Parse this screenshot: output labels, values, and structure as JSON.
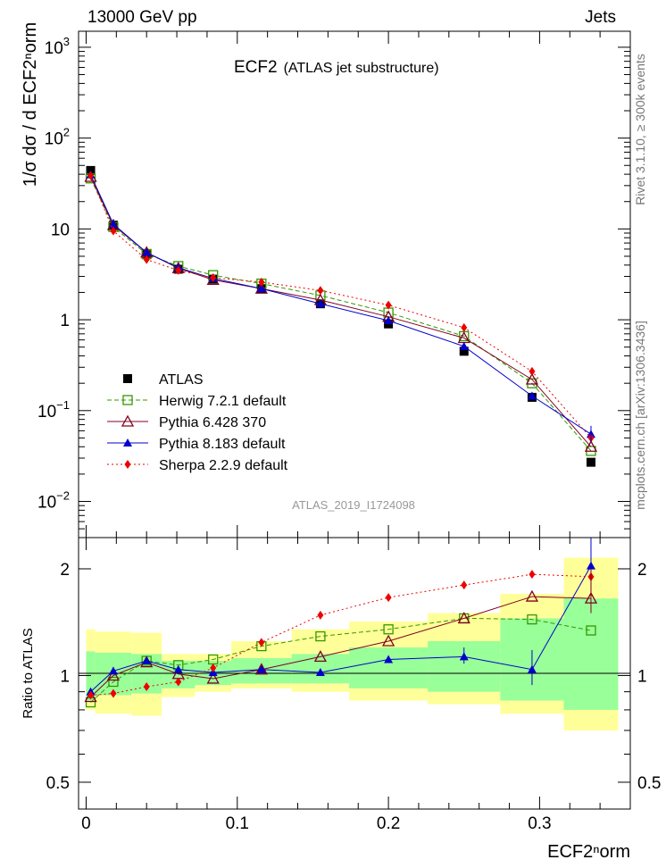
{
  "header": {
    "left": "13000 GeV pp",
    "right": "Jets"
  },
  "side_labels": {
    "rivet": "Rivet 3.1.10, ≥ 300k events",
    "mcplots": "mcplots.cern.ch [arXiv:1306.3436]"
  },
  "watermark": "ATLAS_2019_I1724098",
  "chart_data": [
    {
      "type": "line",
      "panel": "main",
      "title": "ECF2",
      "subtitle": "(ATLAS jet substructure)",
      "ylabel": "1/σ dσ / d ECF2ⁿorm",
      "yscale": "log",
      "ylim": [
        0.004,
        1500
      ],
      "xlim": [
        -0.005,
        0.36
      ],
      "yticks": [
        {
          "value": 0.01,
          "base": "10",
          "exp": "−2"
        },
        {
          "value": 0.1,
          "base": "10",
          "exp": "−1"
        },
        {
          "value": 1,
          "base": "1",
          "exp": ""
        },
        {
          "value": 10,
          "base": "10",
          "exp": ""
        },
        {
          "value": 100,
          "base": "10",
          "exp": "2"
        },
        {
          "value": 1000,
          "base": "10",
          "exp": "3"
        }
      ],
      "x": [
        0.003,
        0.018,
        0.04,
        0.061,
        0.084,
        0.116,
        0.155,
        0.2,
        0.25,
        0.295,
        0.334
      ],
      "series": [
        {
          "name": "ATLAS",
          "color": "#000000",
          "marker": "square-filled",
          "line": "none",
          "values": [
            44,
            11,
            5.2,
            3.6,
            2.8,
            2.2,
            1.5,
            0.9,
            0.45,
            0.14,
            0.027
          ]
        },
        {
          "name": "Herwig 7.2.1 default",
          "color": "#339900",
          "marker": "square-open",
          "line": "dashed",
          "values": [
            36,
            10.5,
            5.3,
            3.9,
            3.1,
            2.5,
            1.85,
            1.2,
            0.66,
            0.2,
            0.036
          ]
        },
        {
          "name": "Pythia 6.428 370",
          "color": "#800020",
          "marker": "triangle-open",
          "line": "solid",
          "values": [
            37.5,
            11,
            5.5,
            3.7,
            2.75,
            2.2,
            1.65,
            1.08,
            0.63,
            0.22,
            0.04
          ]
        },
        {
          "name": "Pythia 8.183 default",
          "color": "#0000cc",
          "marker": "triangle-filled",
          "line": "solid",
          "values": [
            39.5,
            11.3,
            5.5,
            3.75,
            2.85,
            2.2,
            1.5,
            0.98,
            0.51,
            0.145,
            0.055
          ]
        },
        {
          "name": "Sherpa 2.2.9 default",
          "color": "#ee0000",
          "marker": "diamond-filled",
          "line": "dotted",
          "values": [
            38.5,
            9.5,
            4.6,
            3.5,
            2.9,
            2.6,
            2.1,
            1.45,
            0.82,
            0.27,
            0.05
          ]
        }
      ]
    },
    {
      "type": "line",
      "panel": "ratio",
      "ylabel": "Ratio to ATLAS",
      "xlabel": "ECF2ⁿorm",
      "yscale": "log",
      "ylim": [
        0.42,
        2.45
      ],
      "xlim": [
        -0.005,
        0.36
      ],
      "yticks": [
        0.5,
        1,
        2
      ],
      "xticks": [
        0,
        0.1,
        0.2,
        0.3
      ],
      "bins": [
        0,
        0.006,
        0.03,
        0.05,
        0.072,
        0.096,
        0.136,
        0.174,
        0.226,
        0.274,
        0.316,
        0.352
      ],
      "band_inner": [
        [
          0.85,
          1.17
        ],
        [
          0.88,
          1.16
        ],
        [
          0.89,
          1.15
        ],
        [
          0.92,
          1.1
        ],
        [
          0.94,
          1.1
        ],
        [
          0.95,
          1.12
        ],
        [
          0.95,
          1.15
        ],
        [
          0.92,
          1.2
        ],
        [
          0.9,
          1.25
        ],
        [
          0.85,
          1.45
        ],
        [
          0.8,
          1.65
        ]
      ],
      "band_outer": [
        [
          0.8,
          1.35
        ],
        [
          0.78,
          1.33
        ],
        [
          0.77,
          1.32
        ],
        [
          0.87,
          1.15
        ],
        [
          0.9,
          1.15
        ],
        [
          0.92,
          1.25
        ],
        [
          0.9,
          1.35
        ],
        [
          0.85,
          1.42
        ],
        [
          0.83,
          1.5
        ],
        [
          0.78,
          1.7
        ],
        [
          0.7,
          2.15
        ]
      ],
      "x": [
        0.003,
        0.018,
        0.04,
        0.061,
        0.084,
        0.116,
        0.155,
        0.2,
        0.25,
        0.295,
        0.334
      ],
      "series": [
        {
          "name": "Herwig 7.2.1 default",
          "values": [
            0.84,
            0.96,
            1.1,
            1.07,
            1.11,
            1.21,
            1.29,
            1.35,
            1.45,
            1.44,
            1.34
          ]
        },
        {
          "name": "Pythia 6.428 370",
          "values": [
            0.87,
            1.0,
            1.09,
            1.01,
            0.98,
            1.04,
            1.13,
            1.25,
            1.45,
            1.67,
            1.65
          ]
        },
        {
          "name": "Pythia 8.183 default",
          "values": [
            0.9,
            1.03,
            1.1,
            1.04,
            1.02,
            1.04,
            1.02,
            1.11,
            1.13,
            1.04,
            2.04
          ]
        },
        {
          "name": "Sherpa 2.2.9 default",
          "values": [
            0.88,
            0.89,
            0.93,
            0.96,
            1.05,
            1.24,
            1.48,
            1.66,
            1.8,
            1.93,
            1.9
          ]
        }
      ]
    }
  ]
}
